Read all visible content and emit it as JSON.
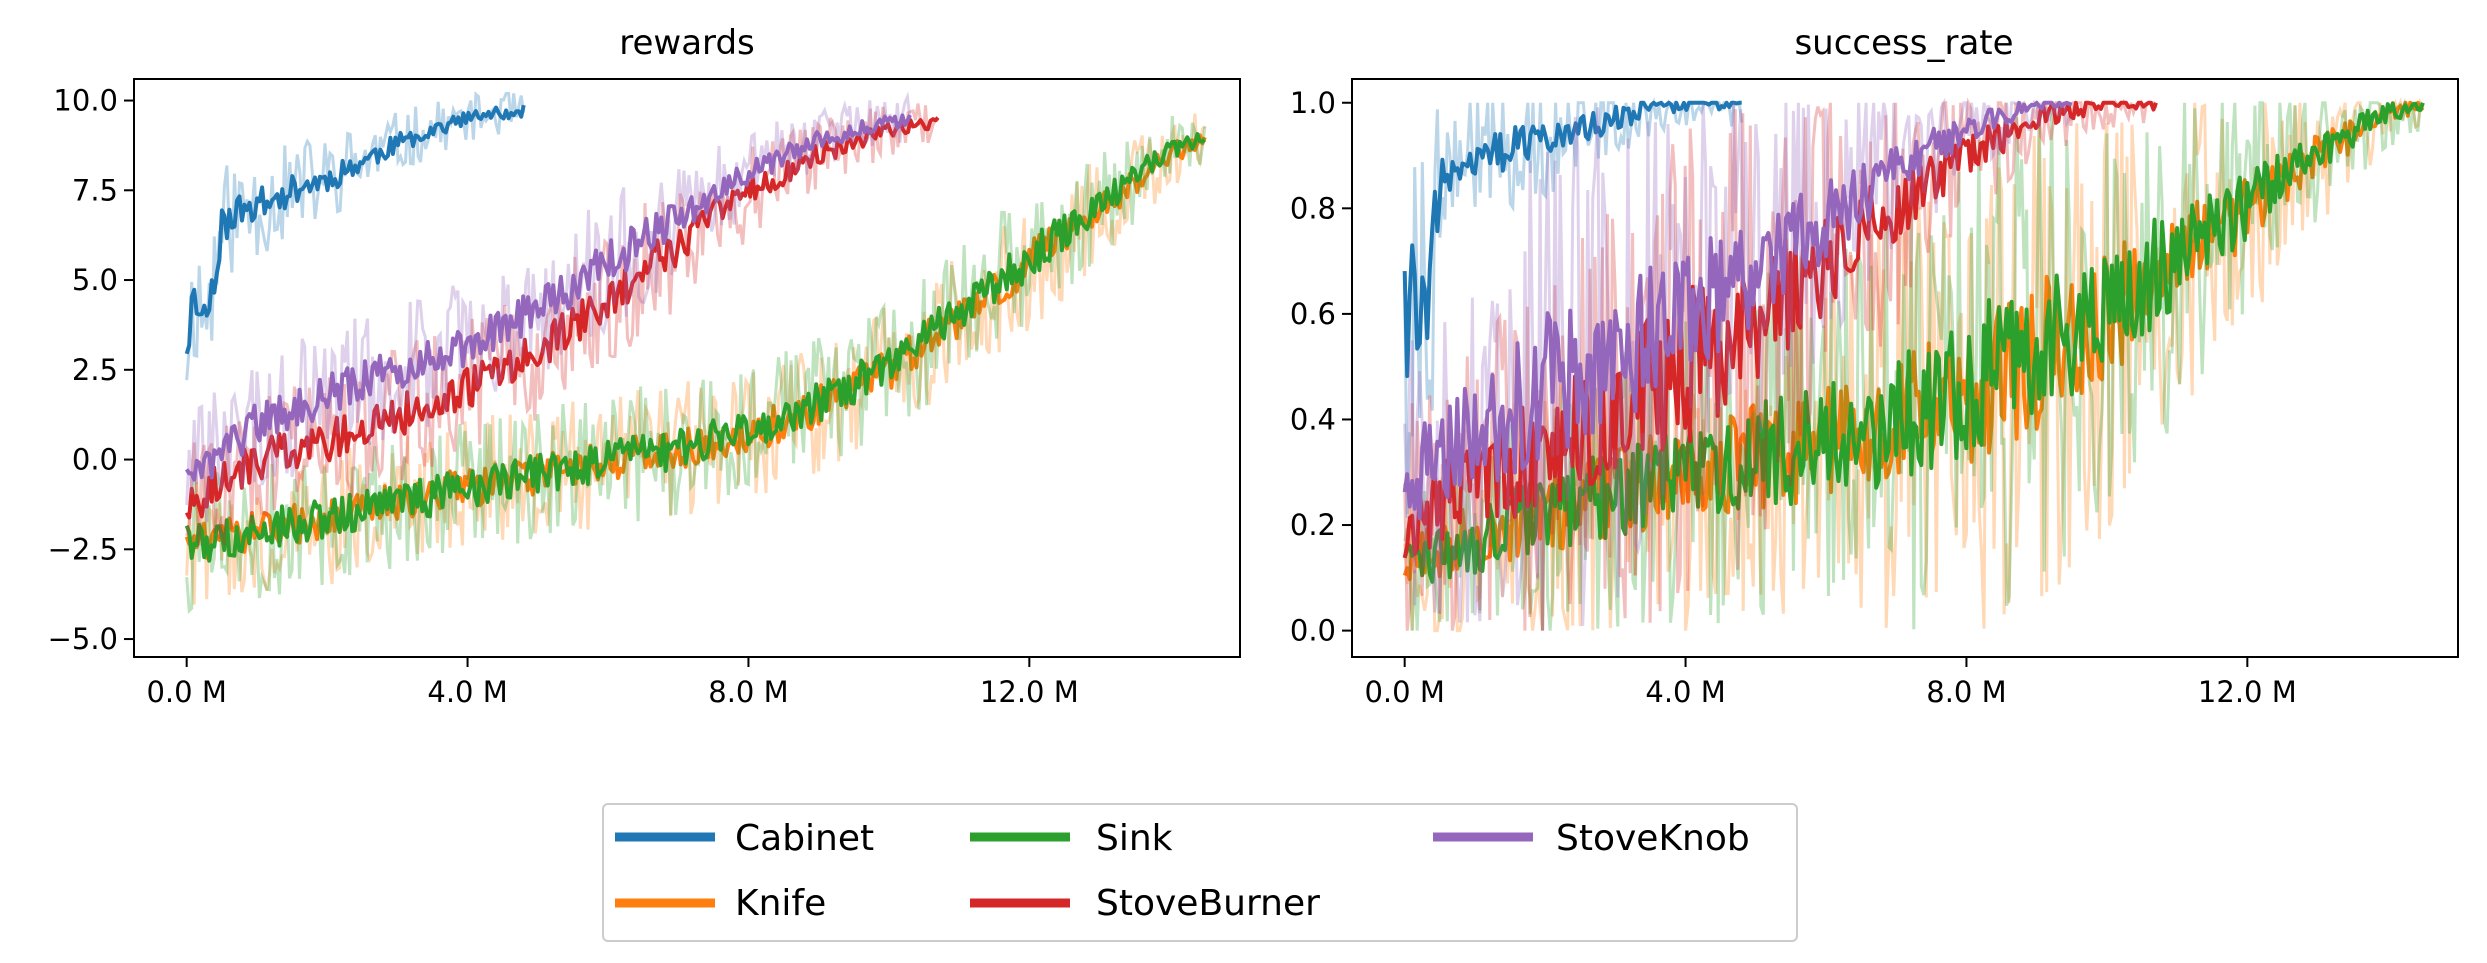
{
  "chart_data": [
    {
      "type": "line",
      "title": "rewards",
      "xlabel": "",
      "ylabel": "",
      "xlim": [
        -0.75,
        15.0
      ],
      "ylim": [
        -5.5,
        10.6
      ],
      "xticks": [
        0,
        4,
        8,
        12
      ],
      "xtick_labels": [
        "0.0 M",
        "4.0 M",
        "8.0 M",
        "12.0 M"
      ],
      "yticks": [
        -5,
        -2.5,
        0,
        2.5,
        5,
        7.5,
        10
      ],
      "ytick_labels": [
        "−5.0",
        "−2.5",
        "0.0",
        "2.5",
        "5.0",
        "7.5",
        "10.0"
      ],
      "x_unit": "M steps",
      "grid": false,
      "series": [
        {
          "name": "Cabinet",
          "x": [
            0,
            0.1,
            0.3,
            0.5,
            0.8,
            1.2,
            1.6,
            2.0,
            2.5,
            3.0,
            3.5,
            4.0,
            4.5,
            4.8
          ],
          "values": [
            3.2,
            4.5,
            4.0,
            6.5,
            7.0,
            7.2,
            7.6,
            7.8,
            8.3,
            8.8,
            9.2,
            9.5,
            9.65,
            9.7
          ]
        },
        {
          "name": "Knife",
          "x": [
            0,
            1,
            2,
            3,
            4,
            5,
            6,
            7,
            8,
            9,
            10,
            11,
            12,
            13,
            14,
            14.5
          ],
          "values": [
            -2.3,
            -2.0,
            -1.6,
            -1.2,
            -0.8,
            -0.4,
            0.0,
            0.3,
            0.7,
            1.5,
            2.5,
            4.0,
            5.5,
            7.0,
            8.5,
            8.9
          ]
        },
        {
          "name": "Sink",
          "x": [
            0,
            1,
            2,
            3,
            4,
            5,
            6,
            7,
            8,
            9,
            10,
            11,
            12,
            13,
            14,
            14.5
          ],
          "values": [
            -2.4,
            -2.0,
            -1.6,
            -1.2,
            -0.8,
            -0.4,
            0.0,
            0.3,
            0.8,
            1.6,
            2.6,
            4.1,
            5.6,
            7.1,
            8.6,
            9.0
          ]
        },
        {
          "name": "StoveBurner",
          "x": [
            0,
            1,
            2,
            3,
            4,
            5,
            6,
            7,
            8,
            9,
            10,
            10.7
          ],
          "values": [
            -1.3,
            0.0,
            0.5,
            1.2,
            2.0,
            3.0,
            4.5,
            6.0,
            7.5,
            8.5,
            9.2,
            9.4
          ]
        },
        {
          "name": "StoveKnob",
          "x": [
            0,
            1,
            2,
            3,
            4,
            5,
            6,
            7,
            8,
            9,
            10,
            10.3
          ],
          "values": [
            -0.5,
            1.0,
            1.8,
            2.5,
            3.2,
            4.2,
            5.5,
            6.8,
            8.0,
            8.9,
            9.4,
            9.5
          ]
        }
      ]
    },
    {
      "type": "line",
      "title": "success_rate",
      "xlabel": "",
      "ylabel": "",
      "xlim": [
        -0.75,
        15.0
      ],
      "ylim": [
        -0.05,
        1.045
      ],
      "xticks": [
        0,
        4,
        8,
        12
      ],
      "xtick_labels": [
        "0.0 M",
        "4.0 M",
        "8.0 M",
        "12.0 M"
      ],
      "yticks": [
        0,
        0.2,
        0.4,
        0.6,
        0.8,
        1.0
      ],
      "ytick_labels": [
        "0.0",
        "0.2",
        "0.4",
        "0.6",
        "0.8",
        "1.0"
      ],
      "x_unit": "M steps",
      "grid": false,
      "series": [
        {
          "name": "Cabinet",
          "x": [
            0,
            0.1,
            0.3,
            0.5,
            0.8,
            1.2,
            1.6,
            2.0,
            2.5,
            3.0,
            3.5,
            4.0,
            4.5,
            4.8
          ],
          "values": [
            0.55,
            0.65,
            0.6,
            0.85,
            0.88,
            0.9,
            0.92,
            0.93,
            0.95,
            0.97,
            0.99,
            1.0,
            1.0,
            1.0
          ]
        },
        {
          "name": "Knife",
          "x": [
            0,
            1,
            2,
            3,
            4,
            5,
            6,
            7,
            8,
            9,
            10,
            11,
            12,
            13,
            14,
            14.5
          ],
          "values": [
            0.12,
            0.18,
            0.22,
            0.26,
            0.3,
            0.33,
            0.36,
            0.4,
            0.45,
            0.52,
            0.6,
            0.7,
            0.8,
            0.9,
            0.98,
            1.0
          ]
        },
        {
          "name": "Sink",
          "x": [
            0,
            1,
            2,
            3,
            4,
            5,
            6,
            7,
            8,
            9,
            10,
            11,
            12,
            13,
            14,
            14.5
          ],
          "values": [
            0.12,
            0.17,
            0.22,
            0.26,
            0.3,
            0.33,
            0.36,
            0.4,
            0.46,
            0.53,
            0.61,
            0.71,
            0.81,
            0.91,
            0.98,
            1.0
          ]
        },
        {
          "name": "StoveBurner",
          "x": [
            0,
            1,
            2,
            3,
            4,
            5,
            6,
            7,
            8,
            9,
            10,
            10.7
          ],
          "values": [
            0.2,
            0.28,
            0.34,
            0.42,
            0.5,
            0.58,
            0.7,
            0.8,
            0.9,
            0.97,
            1.0,
            1.0
          ]
        },
        {
          "name": "StoveKnob",
          "x": [
            0,
            1,
            2,
            3,
            4,
            5,
            6,
            7,
            8,
            9,
            9.5
          ],
          "values": [
            0.28,
            0.38,
            0.46,
            0.53,
            0.6,
            0.68,
            0.78,
            0.87,
            0.95,
            1.0,
            1.0
          ]
        }
      ]
    }
  ],
  "legend": {
    "placement": "bottom-center",
    "entries": [
      {
        "label": "Cabinet",
        "color": "#1f77b4"
      },
      {
        "label": "Knife",
        "color": "#ff7f0e"
      },
      {
        "label": "Sink",
        "color": "#2ca02c"
      },
      {
        "label": "StoveBurner",
        "color": "#d62728"
      },
      {
        "label": "StoveKnob",
        "color": "#9467bd"
      }
    ]
  },
  "colors": {
    "Cabinet": "#1f77b4",
    "Knife": "#ff7f0e",
    "Sink": "#2ca02c",
    "StoveBurner": "#d62728",
    "StoveKnob": "#9467bd"
  }
}
